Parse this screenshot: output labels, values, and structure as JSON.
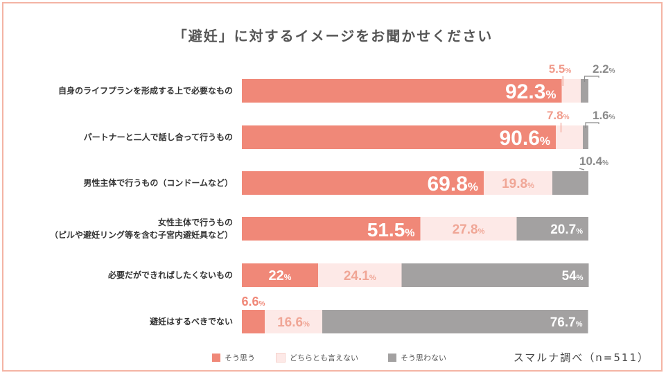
{
  "title": "「避妊」に対するイメージをお聞かせください",
  "source": "スマルナ調べ（n=511）",
  "colors": {
    "agree": "#f08878",
    "neutral": "#fde9e7",
    "disagree": "#a3a1a1",
    "agree_text": "#ffffff",
    "neutral_text": "#f0a696",
    "disagree_text": "#ffffff",
    "frame": "#f4b4a4"
  },
  "legend": [
    {
      "label": "そう思う",
      "color": "#f08878"
    },
    {
      "label": "どちらとも言えない",
      "color": "#fde9e7"
    },
    {
      "label": "そう思わない",
      "color": "#a3a1a1"
    }
  ],
  "chart_data": {
    "type": "bar",
    "orientation": "horizontal",
    "stacked": true,
    "title": "「避妊」に対するイメージをお聞かせください",
    "categories": [
      [
        "自身のライフプランを形成する上で必要なもの"
      ],
      [
        "パートナーと二人で話し合って行うもの"
      ],
      [
        "男性主体で行うもの（コンドームなど）"
      ],
      [
        "女性主体で行うもの",
        "（ピルや避妊リング等を含む子宮内避妊具など）"
      ],
      [
        "必要だができればしたくないもの"
      ],
      [
        "避妊はするべきでない"
      ]
    ],
    "series": [
      {
        "name": "そう思う",
        "values": [
          92.3,
          90.6,
          69.8,
          51.5,
          22,
          6.6
        ],
        "labels": [
          "92.3",
          "90.6",
          "69.8",
          "51.5",
          "22",
          "6.6"
        ]
      },
      {
        "name": "どちらとも言えない",
        "values": [
          5.5,
          7.8,
          19.8,
          27.8,
          24.1,
          16.6
        ],
        "labels": [
          "5.5",
          "7.8",
          "19.8",
          "27.8",
          "24.1",
          "16.6"
        ]
      },
      {
        "name": "そう思わない",
        "values": [
          2.2,
          1.6,
          10.4,
          20.7,
          54,
          76.7
        ],
        "labels": [
          "2.2",
          "1.6",
          "10.4",
          "20.7",
          "54",
          "76.7"
        ]
      }
    ],
    "unit": "%",
    "xlim": [
      0,
      100
    ]
  }
}
